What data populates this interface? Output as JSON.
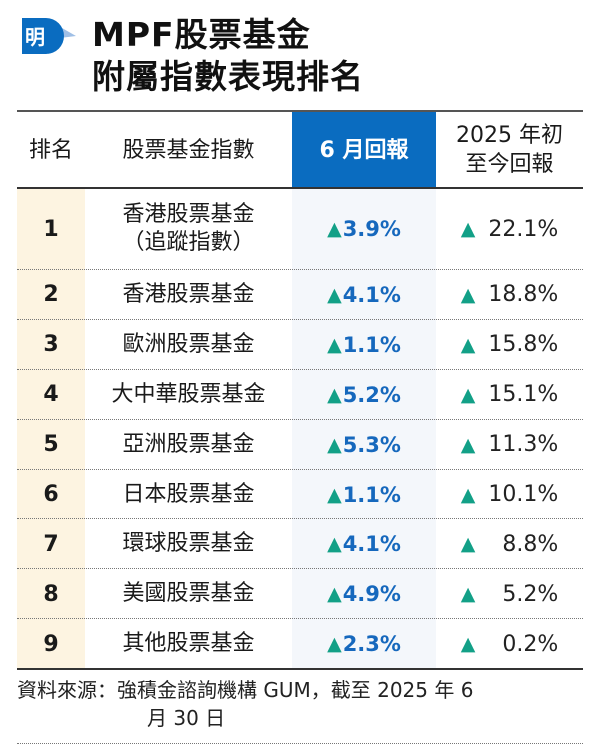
{
  "logo": {
    "char": "明",
    "icon": "ming-pao-logo-icon",
    "color": "#0a6cc0"
  },
  "title": {
    "line1": "MPF股票基金",
    "line2": "附屬指數表現排名"
  },
  "table": {
    "headers": {
      "rank": "排名",
      "name": "股票基金指數",
      "june": "6 月回報",
      "ytd_line1": "2025 年初",
      "ytd_line2": "至今回報"
    },
    "up_icon": "triangle-up-icon",
    "rows": [
      {
        "rank": "1",
        "name_line1": "香港股票基金",
        "name_line2": "（追蹤指數）",
        "june": "3.9%",
        "ytd": "22.1%"
      },
      {
        "rank": "2",
        "name_line1": "香港股票基金",
        "name_line2": "",
        "june": "4.1%",
        "ytd": "18.8%"
      },
      {
        "rank": "3",
        "name_line1": "歐洲股票基金",
        "name_line2": "",
        "june": "1.1%",
        "ytd": "15.8%"
      },
      {
        "rank": "4",
        "name_line1": "大中華股票基金",
        "name_line2": "",
        "june": "5.2%",
        "ytd": "15.1%"
      },
      {
        "rank": "5",
        "name_line1": "亞洲股票基金",
        "name_line2": "",
        "june": "5.3%",
        "ytd": "11.3%"
      },
      {
        "rank": "6",
        "name_line1": "日本股票基金",
        "name_line2": "",
        "june": "1.1%",
        "ytd": "10.1%"
      },
      {
        "rank": "7",
        "name_line1": "環球股票基金",
        "name_line2": "",
        "june": "4.1%",
        "ytd": "8.8%"
      },
      {
        "rank": "8",
        "name_line1": "美國股票基金",
        "name_line2": "",
        "june": "4.9%",
        "ytd": "5.2%"
      },
      {
        "rank": "9",
        "name_line1": "其他股票基金",
        "name_line2": "",
        "june": "2.3%",
        "ytd": "0.2%"
      }
    ],
    "colors": {
      "header_accent": "#0a6cc0",
      "up_arrow": "#12a087",
      "june_value": "#1668bd",
      "rank_bg": "#fdf4e1"
    }
  },
  "footer": {
    "line1": "資料來源：強積金諮詢機構 GUM，截至 2025 年 6",
    "line2": "月 30 日"
  }
}
